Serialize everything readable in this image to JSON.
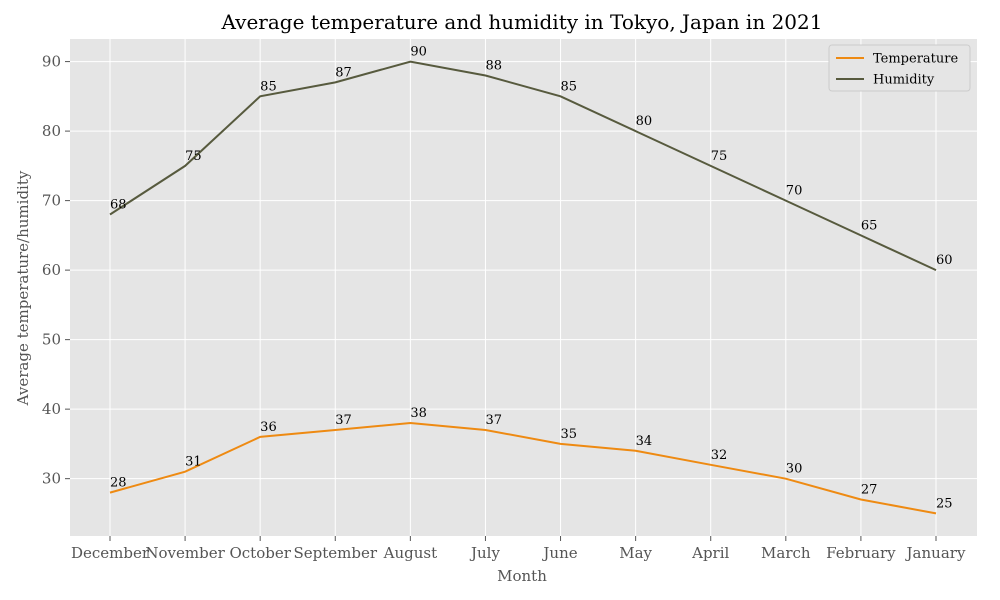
{
  "chart_data": {
    "type": "line",
    "title": "Average temperature and humidity in Tokyo, Japan in 2021",
    "xlabel": "Month",
    "ylabel": "Average temperature/humidity",
    "categories": [
      "December",
      "November",
      "October",
      "September",
      "August",
      "July",
      "June",
      "May",
      "April",
      "March",
      "February",
      "January"
    ],
    "series": [
      {
        "name": "Temperature",
        "color": "#ee8a12",
        "values": [
          28,
          31,
          36,
          37,
          38,
          37,
          35,
          34,
          32,
          30,
          27,
          25
        ]
      },
      {
        "name": "Humidity",
        "color": "#575a3e",
        "values": [
          68,
          75,
          85,
          87,
          90,
          88,
          85,
          80,
          75,
          70,
          65,
          60
        ]
      }
    ],
    "ylim": [
      21.75,
      93.25
    ],
    "yticks": [
      30,
      40,
      50,
      60,
      70,
      80,
      90
    ],
    "grid": true,
    "legend": "top-right",
    "plot_background": "#e5e5e5",
    "grid_color": "#ffffff"
  }
}
